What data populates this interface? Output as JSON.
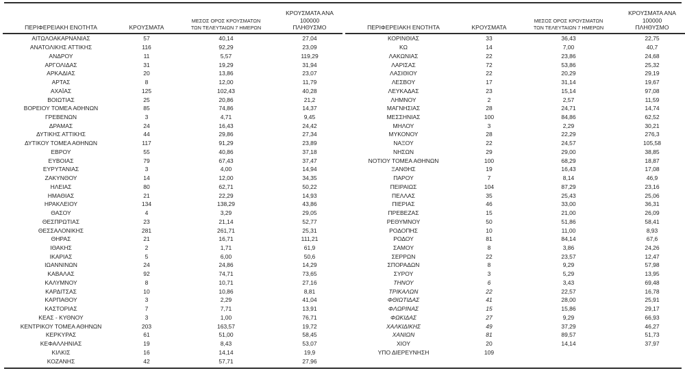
{
  "colors": {
    "background": "#ffffff",
    "text": "#1f1f1f",
    "rule": "#2d2d2d"
  },
  "header": {
    "region": "ΠΕΡΙΦΕΡΕΙΑΚΗ ΕΝΟΤΗΤΑ",
    "cases": "ΚΡΟΥΣΜΑΤΑ",
    "avg7_line1": "ΜΕΣΟΣ ΟΡΟΣ ΚΡΟΥΣΜΑΤΩΝ",
    "avg7_line2": "ΤΩΝ ΤΕΛΕΥΤΑΙΩΝ 7 ΗΜΕΡΩΝ",
    "per100k_line1": "ΚΡΟΥΣΜΑΤΑ ΑΝΑ 100000",
    "per100k_line2": "ΠΛΗΘΥΣΜΟ"
  },
  "tables": [
    {
      "rows": [
        [
          "ΑΙΤΩΛΟΑΚΑΡΝΑΝΙΑΣ",
          "57",
          "40,14",
          "27,04"
        ],
        [
          "ΑΝΑΤΟΛΙΚΗΣ ΑΤΤΙΚΗΣ",
          "116",
          "92,29",
          "23,09"
        ],
        [
          "ΑΝΔΡΟΥ",
          "11",
          "5,57",
          "119,29"
        ],
        [
          "ΑΡΓΟΛΙΔΑΣ",
          "31",
          "19,29",
          "31,94"
        ],
        [
          "ΑΡΚΑΔΙΑΣ",
          "20",
          "13,86",
          "23,07"
        ],
        [
          "ΑΡΤΑΣ",
          "8",
          "12,00",
          "11,79"
        ],
        [
          "ΑΧΑΪΑΣ",
          "125",
          "102,43",
          "40,28"
        ],
        [
          "ΒΟΙΩΤΙΑΣ",
          "25",
          "20,86",
          "21,2"
        ],
        [
          "ΒΟΡΕΙΟΥ ΤΟΜΕΑ ΑΘΗΝΩΝ",
          "85",
          "74,86",
          "14,37"
        ],
        [
          "ΓΡΕΒΕΝΩΝ",
          "3",
          "4,71",
          "9,45"
        ],
        [
          "ΔΡΑΜΑΣ",
          "24",
          "16,43",
          "24,42"
        ],
        [
          "ΔΥΤΙΚΗΣ ΑΤΤΙΚΗΣ",
          "44",
          "29,86",
          "27,34"
        ],
        [
          "ΔΥΤΙΚΟΥ ΤΟΜΕΑ ΑΘΗΝΩΝ",
          "117",
          "91,29",
          "23,89"
        ],
        [
          "ΕΒΡΟΥ",
          "55",
          "40,86",
          "37,18"
        ],
        [
          "ΕΥΒΟΙΑΣ",
          "79",
          "67,43",
          "37,47"
        ],
        [
          "ΕΥΡΥΤΑΝΙΑΣ",
          "3",
          "4,00",
          "14,94"
        ],
        [
          "ΖΑΚΥΝΘΟΥ",
          "14",
          "12,00",
          "34,35"
        ],
        [
          "ΗΛΕΙΑΣ",
          "80",
          "62,71",
          "50,22"
        ],
        [
          "ΗΜΑΘΙΑΣ",
          "21",
          "22,29",
          "14,93"
        ],
        [
          "ΗΡΑΚΛΕΙΟΥ",
          "134",
          "138,29",
          "43,86"
        ],
        [
          "ΘΑΣΟΥ",
          "4",
          "3,29",
          "29,05"
        ],
        [
          "ΘΕΣΠΡΩΤΙΑΣ",
          "23",
          "21,14",
          "52,77"
        ],
        [
          "ΘΕΣΣΑΛΟΝΙΚΗΣ",
          "281",
          "261,71",
          "25,31"
        ],
        [
          "ΘΗΡΑΣ",
          "21",
          "16,71",
          "111,21"
        ],
        [
          "ΙΘΑΚΗΣ",
          "2",
          "1,71",
          "61,9"
        ],
        [
          "ΙΚΑΡΙΑΣ",
          "5",
          "6,00",
          "50,6"
        ],
        [
          "ΙΩΑΝΝΙΝΩΝ",
          "24",
          "24,86",
          "14,29"
        ],
        [
          "ΚΑΒΑΛΑΣ",
          "92",
          "74,71",
          "73,65"
        ],
        [
          "ΚΑΛΥΜΝΟΥ",
          "8",
          "10,71",
          "27,16"
        ],
        [
          "ΚΑΡΔΙΤΣΑΣ",
          "10",
          "10,86",
          "8,81"
        ],
        [
          "ΚΑΡΠΑΘΟΥ",
          "3",
          "2,29",
          "41,04"
        ],
        [
          "ΚΑΣΤΟΡΙΑΣ",
          "7",
          "7,71",
          "13,91"
        ],
        [
          "ΚΕΑΣ - ΚΥΘΝΟΥ",
          "3",
          "1,00",
          "76,71"
        ],
        [
          "ΚΕΝΤΡΙΚΟΥ ΤΟΜΕΑ ΑΘΗΝΩΝ",
          "203",
          "163,57",
          "19,72"
        ],
        [
          "ΚΕΡΚΥΡΑΣ",
          "61",
          "51,00",
          "58,45"
        ],
        [
          "ΚΕΦΑΛΛΗΝΙΑΣ",
          "19",
          "8,43",
          "53,07"
        ],
        [
          "ΚΙΛΚΙΣ",
          "16",
          "14,14",
          "19,9"
        ],
        [
          "ΚΟΖΑΝΗΣ",
          "42",
          "57,71",
          "27,96"
        ]
      ]
    },
    {
      "rows": [
        [
          "ΚΟΡΙΝΘΙΑΣ",
          "33",
          "36,43",
          "22,75"
        ],
        [
          "ΚΩ",
          "14",
          "7,00",
          "40,7"
        ],
        [
          "ΛΑΚΩΝΙΑΣ",
          "22",
          "23,86",
          "24,68"
        ],
        [
          "ΛΑΡΙΣΑΣ",
          "72",
          "53,86",
          "25,32"
        ],
        [
          "ΛΑΣΙΘΙΟΥ",
          "22",
          "20,29",
          "29,19"
        ],
        [
          "ΛΕΣΒΟΥ",
          "17",
          "31,14",
          "19,67"
        ],
        [
          "ΛΕΥΚΑΔΑΣ",
          "23",
          "15,14",
          "97,08"
        ],
        [
          "ΛΗΜΝΟΥ",
          "2",
          "2,57",
          "11,59"
        ],
        [
          "ΜΑΓΝΗΣΙΑΣ",
          "28",
          "24,71",
          "14,74"
        ],
        [
          "ΜΕΣΣΗΝΙΑΣ",
          "100",
          "84,86",
          "62,52"
        ],
        [
          "ΜΗΛΟΥ",
          "3",
          "2,29",
          "30,21"
        ],
        [
          "ΜΥΚΟΝΟΥ",
          "28",
          "22,29",
          "276,3"
        ],
        [
          "ΝΑΞΟΥ",
          "22",
          "24,57",
          "105,58"
        ],
        [
          "ΝΗΣΩΝ",
          "29",
          "29,00",
          "38,85"
        ],
        [
          "ΝΟΤΙΟΥ ΤΟΜΕΑ ΑΘΗΝΩΝ",
          "100",
          "68,29",
          "18,87"
        ],
        [
          "ΞΑΝΘΗΣ",
          "19",
          "16,43",
          "17,08"
        ],
        [
          "ΠΑΡΟΥ",
          "7",
          "8,14",
          "46,9"
        ],
        [
          "ΠΕΙΡΑΙΩΣ",
          "104",
          "87,29",
          "23,16"
        ],
        [
          "ΠΕΛΛΑΣ",
          "35",
          "25,43",
          "25,06"
        ],
        [
          "ΠΙΕΡΙΑΣ",
          "46",
          "33,00",
          "36,31"
        ],
        [
          "ΠΡΕΒΕΖΑΣ",
          "15",
          "21,00",
          "26,09"
        ],
        [
          "ΡΕΘΥΜΝΟΥ",
          "50",
          "51,86",
          "58,41"
        ],
        [
          "ΡΟΔΟΠΗΣ",
          "10",
          "11,00",
          "8,93"
        ],
        [
          "ΡΟΔΟΥ",
          "81",
          "84,14",
          "67,6"
        ],
        [
          "ΣΑΜΟΥ",
          "8",
          "3,86",
          "24,26"
        ],
        [
          "ΣΕΡΡΩΝ",
          "22",
          "23,57",
          "12,47"
        ],
        [
          "ΣΠΟΡΑΔΩΝ",
          "8",
          "9,29",
          "57,98"
        ],
        [
          "ΣΥΡΟΥ",
          "3",
          "5,29",
          "13,95"
        ],
        [
          "ΤΗΝΟΥ",
          "6",
          "3,43",
          "69,48",
          "italic"
        ],
        [
          "ΤΡΙΚΑΛΩΝ",
          "22",
          "22,57",
          "16,78",
          "italic"
        ],
        [
          "ΦΘΙΩΤΙΔΑΣ",
          "41",
          "28,00",
          "25,91",
          "italic"
        ],
        [
          "ΦΛΩΡΙΝΑΣ",
          "15",
          "15,86",
          "29,17",
          "italic"
        ],
        [
          "ΦΩΚΙΔΑΣ",
          "27",
          "9,29",
          "66,93",
          "italic"
        ],
        [
          "ΧΑΛΚΙΔΙΚΗΣ",
          "49",
          "37,29",
          "46,27",
          "italic"
        ],
        [
          "ΧΑΝΙΩΝ",
          "81",
          "89,57",
          "51,73",
          "italic"
        ],
        [
          "ΧΙΟΥ",
          "20",
          "14,14",
          "37,97"
        ],
        [
          "ΥΠΟ ΔΙΕΡΕΥΝΗΣΗ",
          "109",
          "",
          ""
        ]
      ]
    }
  ]
}
